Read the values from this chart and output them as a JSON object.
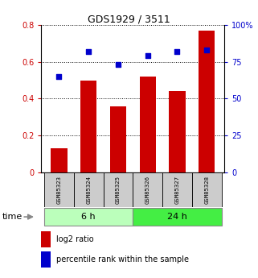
{
  "title": "GDS1929 / 3511",
  "categories": [
    "GSM85323",
    "GSM85324",
    "GSM85325",
    "GSM85326",
    "GSM85327",
    "GSM85328"
  ],
  "log2_ratio": [
    0.13,
    0.5,
    0.36,
    0.52,
    0.44,
    0.77
  ],
  "percentile_rank": [
    65,
    82,
    73,
    79,
    82,
    83
  ],
  "bar_color": "#cc0000",
  "dot_color": "#0000cc",
  "ylim_left": [
    0,
    0.8
  ],
  "ylim_right": [
    0,
    100
  ],
  "yticks_left": [
    0,
    0.2,
    0.4,
    0.6,
    0.8
  ],
  "ytick_labels_left": [
    "0",
    "0.2",
    "0.4",
    "0.6",
    "0.8"
  ],
  "yticks_right": [
    0,
    25,
    50,
    75,
    100
  ],
  "ytick_labels_right": [
    "0",
    "25",
    "50",
    "75",
    "100%"
  ],
  "group1_label": "6 h",
  "group2_label": "24 h",
  "group1_color_light": "#bbffbb",
  "group2_color": "#44ee44",
  "time_label": "time",
  "legend_bar_label": "log2 ratio",
  "legend_dot_label": "percentile rank within the sample",
  "background_color": "#ffffff",
  "tick_label_color_left": "#cc0000",
  "tick_label_color_right": "#0000cc",
  "sample_box_color": "#cccccc"
}
